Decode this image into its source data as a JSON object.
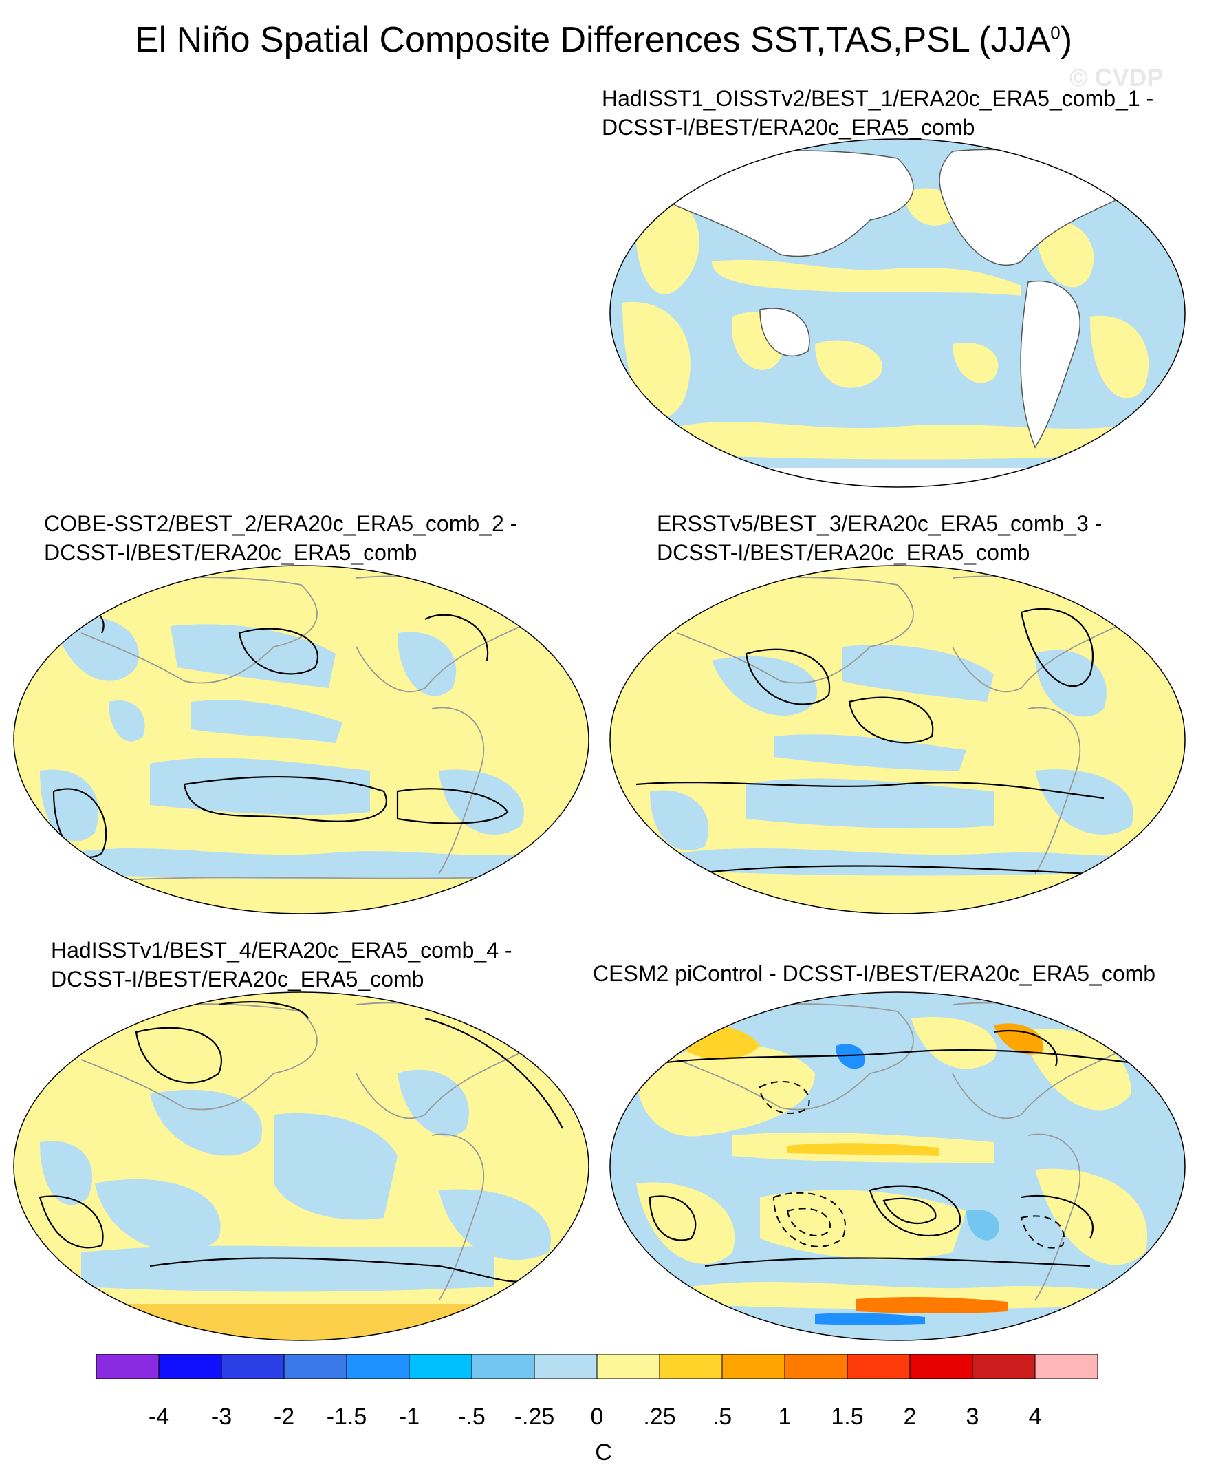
{
  "title": {
    "main": "El Niño Spatial Composite Differences SST,TAS,PSL (JJA",
    "sup": "0",
    "close": ")"
  },
  "watermark": "© CVDP",
  "panels": [
    {
      "line1": "HadISST1_OISSTv2/BEST_1/ERA20c_ERA5_comb_1 -",
      "line2": "DCSST-I/BEST/ERA20c_ERA5_comb"
    },
    {
      "line1": "COBE-SST2/BEST_2/ERA20c_ERA5_comb_2 -",
      "line2": "DCSST-I/BEST/ERA20c_ERA5_comb"
    },
    {
      "line1": "ERSSTv5/BEST_3/ERA20c_ERA5_comb_3 -",
      "line2": "DCSST-I/BEST/ERA20c_ERA5_comb"
    },
    {
      "line1": "HadISSTv1/BEST_4/ERA20c_ERA5_comb_4 -",
      "line2": "DCSST-I/BEST/ERA20c_ERA5_comb"
    },
    {
      "line1": "CESM2 piControl - DCSST-I/BEST/ERA20c_ERA5_comb",
      "line2": ""
    }
  ],
  "colorbar": {
    "colors": [
      "#8a2be2",
      "#1010ff",
      "#2a3fe6",
      "#3a78e8",
      "#1e90ff",
      "#00bfff",
      "#72c6f0",
      "#b6def2",
      "#fdf79a",
      "#ffd32a",
      "#ffa500",
      "#ff7b00",
      "#ff3a0a",
      "#e60000",
      "#cc1c1c",
      "#ffb6b9"
    ],
    "labels": [
      "-4",
      "-3",
      "-2",
      "-1.5",
      "-1",
      "-.5",
      "-.25",
      "0",
      ".25",
      ".5",
      "1",
      "1.5",
      "2",
      "3",
      "4"
    ],
    "units": "C"
  }
}
